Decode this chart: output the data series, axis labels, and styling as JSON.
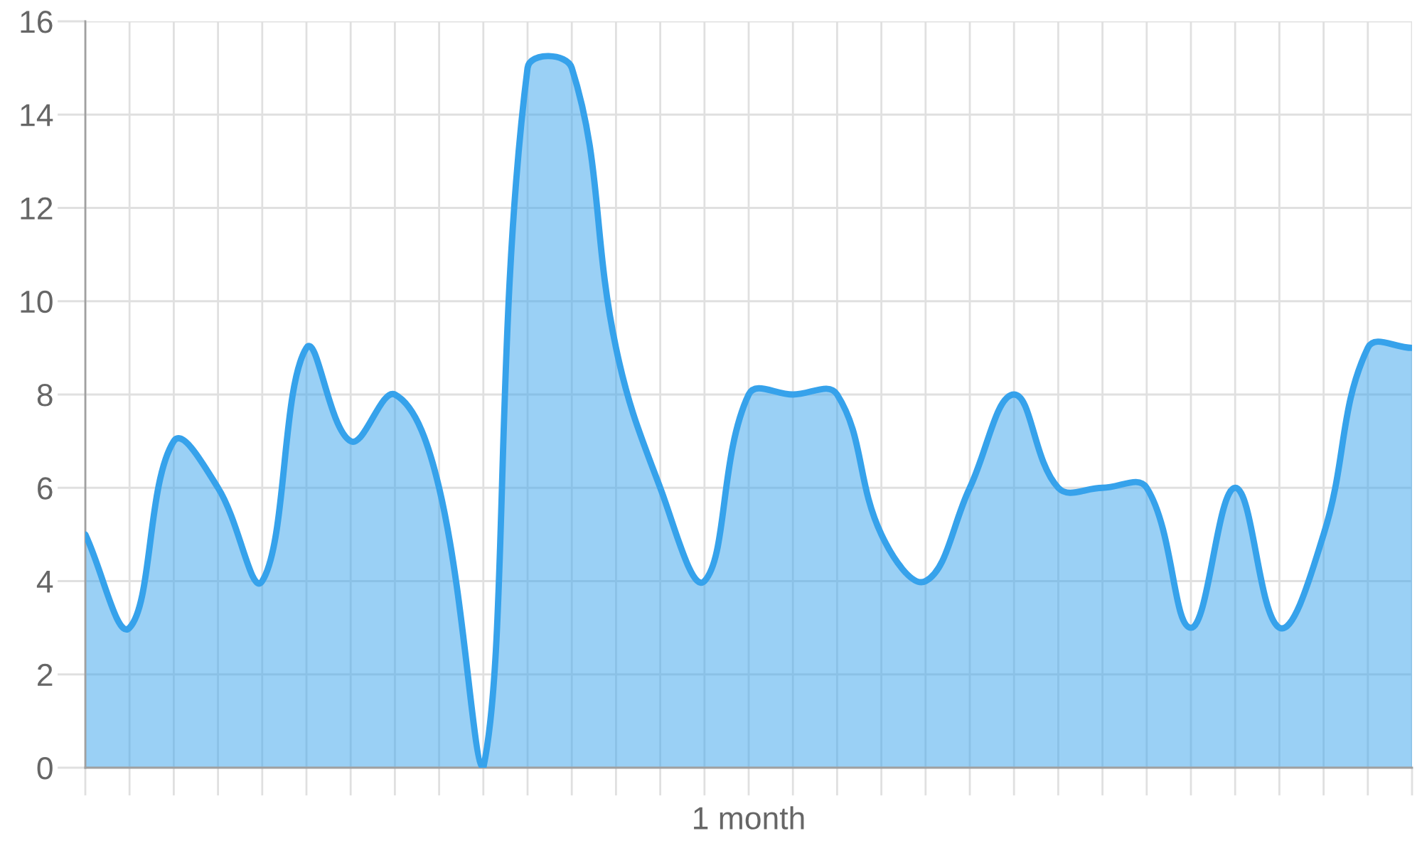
{
  "chart_data": {
    "type": "area",
    "xlabel": "1 month",
    "categories": [
      null,
      null,
      null,
      null,
      null,
      null,
      null,
      null,
      null,
      null,
      null,
      null,
      null,
      null,
      null,
      null,
      null,
      null,
      null,
      null,
      null,
      null,
      null,
      null,
      null,
      null,
      null,
      null,
      null,
      null,
      null
    ],
    "series": [
      {
        "color": "#36a2eb",
        "values": [
          5,
          3,
          7,
          6,
          4,
          9,
          7,
          8,
          6,
          0,
          15,
          15,
          9,
          6,
          4,
          8,
          8,
          8,
          5,
          4,
          6,
          8,
          6,
          6,
          6,
          3,
          6,
          3,
          5,
          9,
          9
        ]
      }
    ],
    "ylim": [
      0,
      16
    ],
    "yticks": [
      0,
      2,
      4,
      6,
      8,
      10,
      12,
      14,
      16
    ],
    "grid": true
  }
}
